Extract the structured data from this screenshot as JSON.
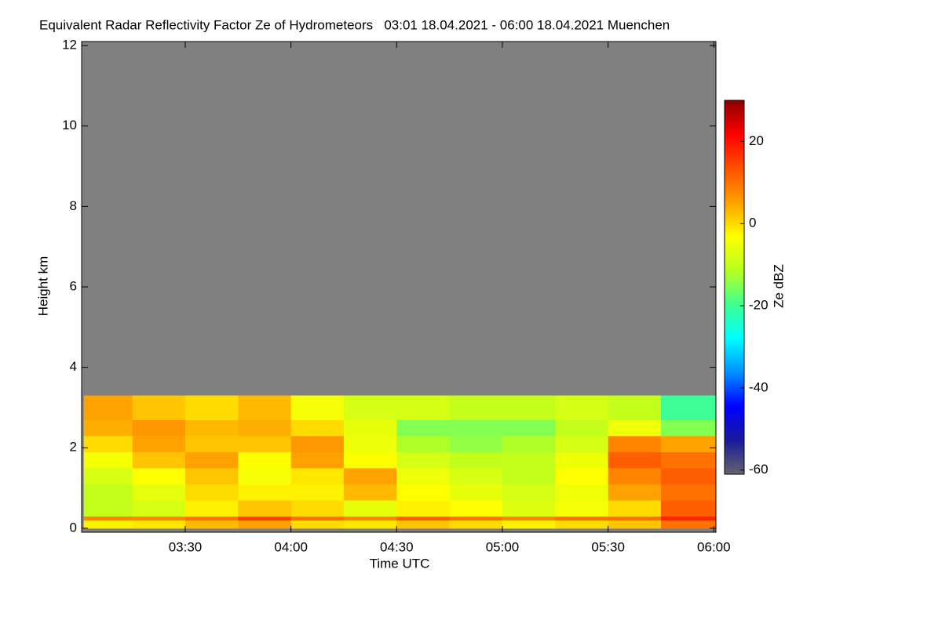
{
  "chart_data": {
    "type": "heatmap",
    "title": "Equivalent Radar Reflectivity Factor Ze of Hydrometeors   03:01 18.04.2021 - 06:00 18.04.2021 Muenchen",
    "x_label": "Time UTC",
    "y_label": "Height km",
    "colorbar_label": "Ze dBZ",
    "xlim": [
      3.01,
      6.01
    ],
    "xticks": [
      {
        "value": 3.5,
        "label": "03:30"
      },
      {
        "value": 4,
        "label": "04:00"
      },
      {
        "value": 4.5,
        "label": "04:30"
      },
      {
        "value": 5,
        "label": "05:00"
      },
      {
        "value": 5.5,
        "label": "05:30"
      },
      {
        "value": 6,
        "label": "06:00"
      }
    ],
    "ylim": [
      -0.1,
      12.1
    ],
    "yticks": [
      0,
      2,
      4,
      6,
      8,
      10,
      12
    ],
    "clim": [
      -61,
      30
    ],
    "cticks": [
      -60,
      -40,
      -20,
      0,
      20
    ],
    "colors": [
      "#63636d",
      "#1a1a9c",
      "#0000ff",
      "#0090ff",
      "#00ffff",
      "#40ff90",
      "#b8ff20",
      "#ffff00",
      "#ffa000",
      "#ff5000",
      "#ff0000",
      "#8b0000"
    ],
    "no_data_color": "#808080",
    "xbins": [
      3.02,
      3.25,
      3.5,
      3.75,
      4,
      4.25,
      4.5,
      4.75,
      5,
      5.25,
      5.5,
      5.75,
      6.01
    ],
    "ybins": [
      0,
      0.2,
      0.3,
      0.7,
      1.1,
      1.5,
      1.9,
      2.3,
      2.7,
      3.3
    ],
    "z": [
      [
        -2,
        -1,
        3,
        5,
        0,
        -1,
        2,
        0,
        -2,
        0,
        2,
        10
      ],
      [
        8,
        8,
        10,
        15,
        10,
        8,
        12,
        10,
        8,
        10,
        10,
        18
      ],
      [
        -10,
        -8,
        -2,
        2,
        0,
        -6,
        -2,
        -3,
        -7,
        -4,
        0,
        12
      ],
      [
        -10,
        -6,
        0,
        -2,
        -2,
        3,
        -3,
        -6,
        -8,
        -5,
        5,
        10
      ],
      [
        -8,
        -3,
        2,
        -4,
        -1,
        5,
        -5,
        -8,
        -10,
        -3,
        8,
        12
      ],
      [
        -4,
        2,
        5,
        -3,
        5,
        -3,
        -8,
        -10,
        -10,
        -5,
        12,
        10
      ],
      [
        0,
        5,
        2,
        2,
        6,
        -5,
        -12,
        -14,
        -12,
        -8,
        8,
        5
      ],
      [
        4,
        6,
        3,
        4,
        0,
        -6,
        -15,
        -15,
        -15,
        -10,
        -5,
        -15
      ],
      [
        5,
        2,
        0,
        3,
        -4,
        -8,
        -8,
        -10,
        -10,
        -8,
        -10,
        -20
      ]
    ]
  }
}
